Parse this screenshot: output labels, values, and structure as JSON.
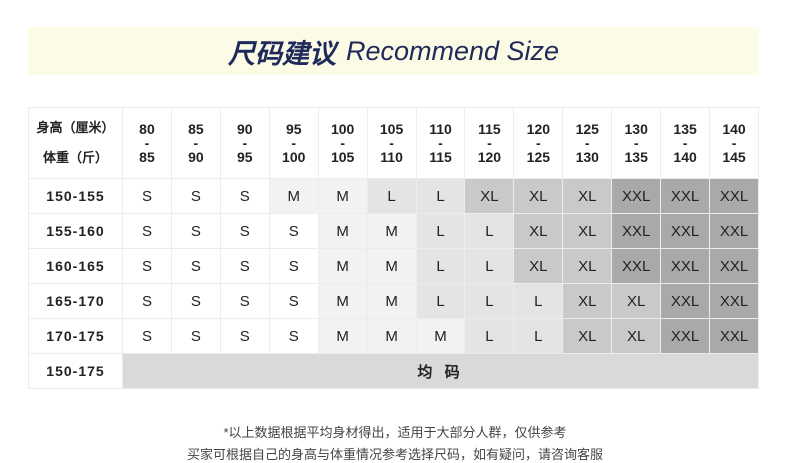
{
  "title": {
    "cn": "尺码建议",
    "en": "Recommend Size"
  },
  "header": {
    "height_label": "身高（厘米）",
    "weight_label": "体重（斤）",
    "columns": [
      [
        "80",
        "85"
      ],
      [
        "85",
        "90"
      ],
      [
        "90",
        "95"
      ],
      [
        "95",
        "100"
      ],
      [
        "100",
        "105"
      ],
      [
        "105",
        "110"
      ],
      [
        "110",
        "115"
      ],
      [
        "115",
        "120"
      ],
      [
        "120",
        "125"
      ],
      [
        "125",
        "130"
      ],
      [
        "130",
        "135"
      ],
      [
        "135",
        "140"
      ],
      [
        "140",
        "145"
      ]
    ]
  },
  "rows": [
    {
      "height": "150-155",
      "sizes": [
        "S",
        "S",
        "S",
        "M",
        "M",
        "L",
        "L",
        "XL",
        "XL",
        "XL",
        "XXL",
        "XXL",
        "XXL"
      ]
    },
    {
      "height": "155-160",
      "sizes": [
        "S",
        "S",
        "S",
        "S",
        "M",
        "M",
        "L",
        "L",
        "XL",
        "XL",
        "XXL",
        "XXL",
        "XXL"
      ]
    },
    {
      "height": "160-165",
      "sizes": [
        "S",
        "S",
        "S",
        "S",
        "M",
        "M",
        "L",
        "L",
        "XL",
        "XL",
        "XXL",
        "XXL",
        "XXL"
      ]
    },
    {
      "height": "165-170",
      "sizes": [
        "S",
        "S",
        "S",
        "S",
        "M",
        "M",
        "L",
        "L",
        "L",
        "XL",
        "XL",
        "XXL",
        "XXL"
      ]
    },
    {
      "height": "170-175",
      "sizes": [
        "S",
        "S",
        "S",
        "S",
        "M",
        "M",
        "M",
        "L",
        "L",
        "XL",
        "XL",
        "XXL",
        "XXL"
      ]
    }
  ],
  "last_row": {
    "height": "150-175",
    "label": "均 码"
  },
  "size_colors": {
    "S": "#ffffff",
    "M": "#f2f2f2",
    "L": "#e4e4e4",
    "XL": "#c9c9c9",
    "XXL": "#a9a9a9",
    "one_size": "#d9d9d9"
  },
  "footer": {
    "line1": "*以上数据根据平均身材得出，适用于大部分人群，仅供参考",
    "line2": "买家可根据自己的身高与体重情况参考选择尺码，如有疑问，请咨询客服"
  }
}
